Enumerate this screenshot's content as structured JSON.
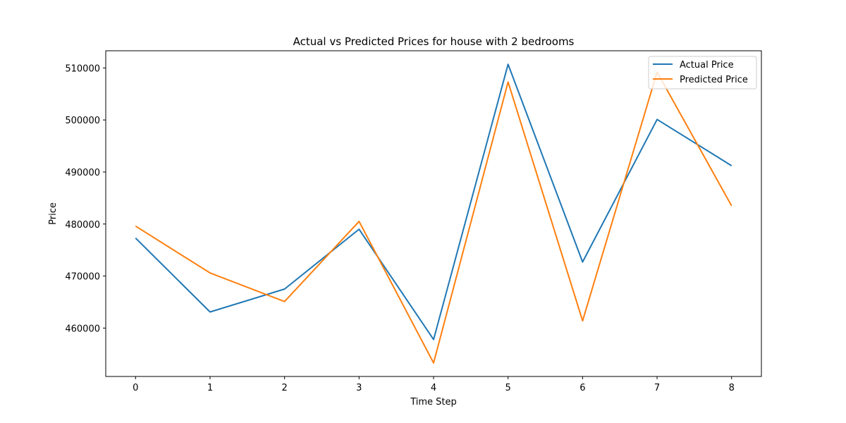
{
  "chart_data": {
    "type": "line",
    "title": "Actual vs Predicted Prices for house with 2 bedrooms",
    "xlabel": "Time Step",
    "ylabel": "Price",
    "x": [
      0,
      1,
      2,
      3,
      4,
      5,
      6,
      7,
      8
    ],
    "xlim": [
      -0.4,
      8.4
    ],
    "ylim": [
      450700,
      513300
    ],
    "xticks": [
      0,
      1,
      2,
      3,
      4,
      5,
      6,
      7,
      8
    ],
    "yticks": [
      460000,
      470000,
      480000,
      490000,
      500000,
      510000
    ],
    "grid": false,
    "legend_position": "top-right",
    "series": [
      {
        "name": "Actual Price",
        "color": "#1f77b4",
        "values": [
          477300,
          463100,
          467500,
          479000,
          457800,
          510700,
          472700,
          500100,
          491200
        ]
      },
      {
        "name": "Predicted Price",
        "color": "#ff7f0e",
        "values": [
          479600,
          470600,
          465100,
          480500,
          453300,
          507300,
          461400,
          509200,
          483500
        ]
      }
    ]
  }
}
